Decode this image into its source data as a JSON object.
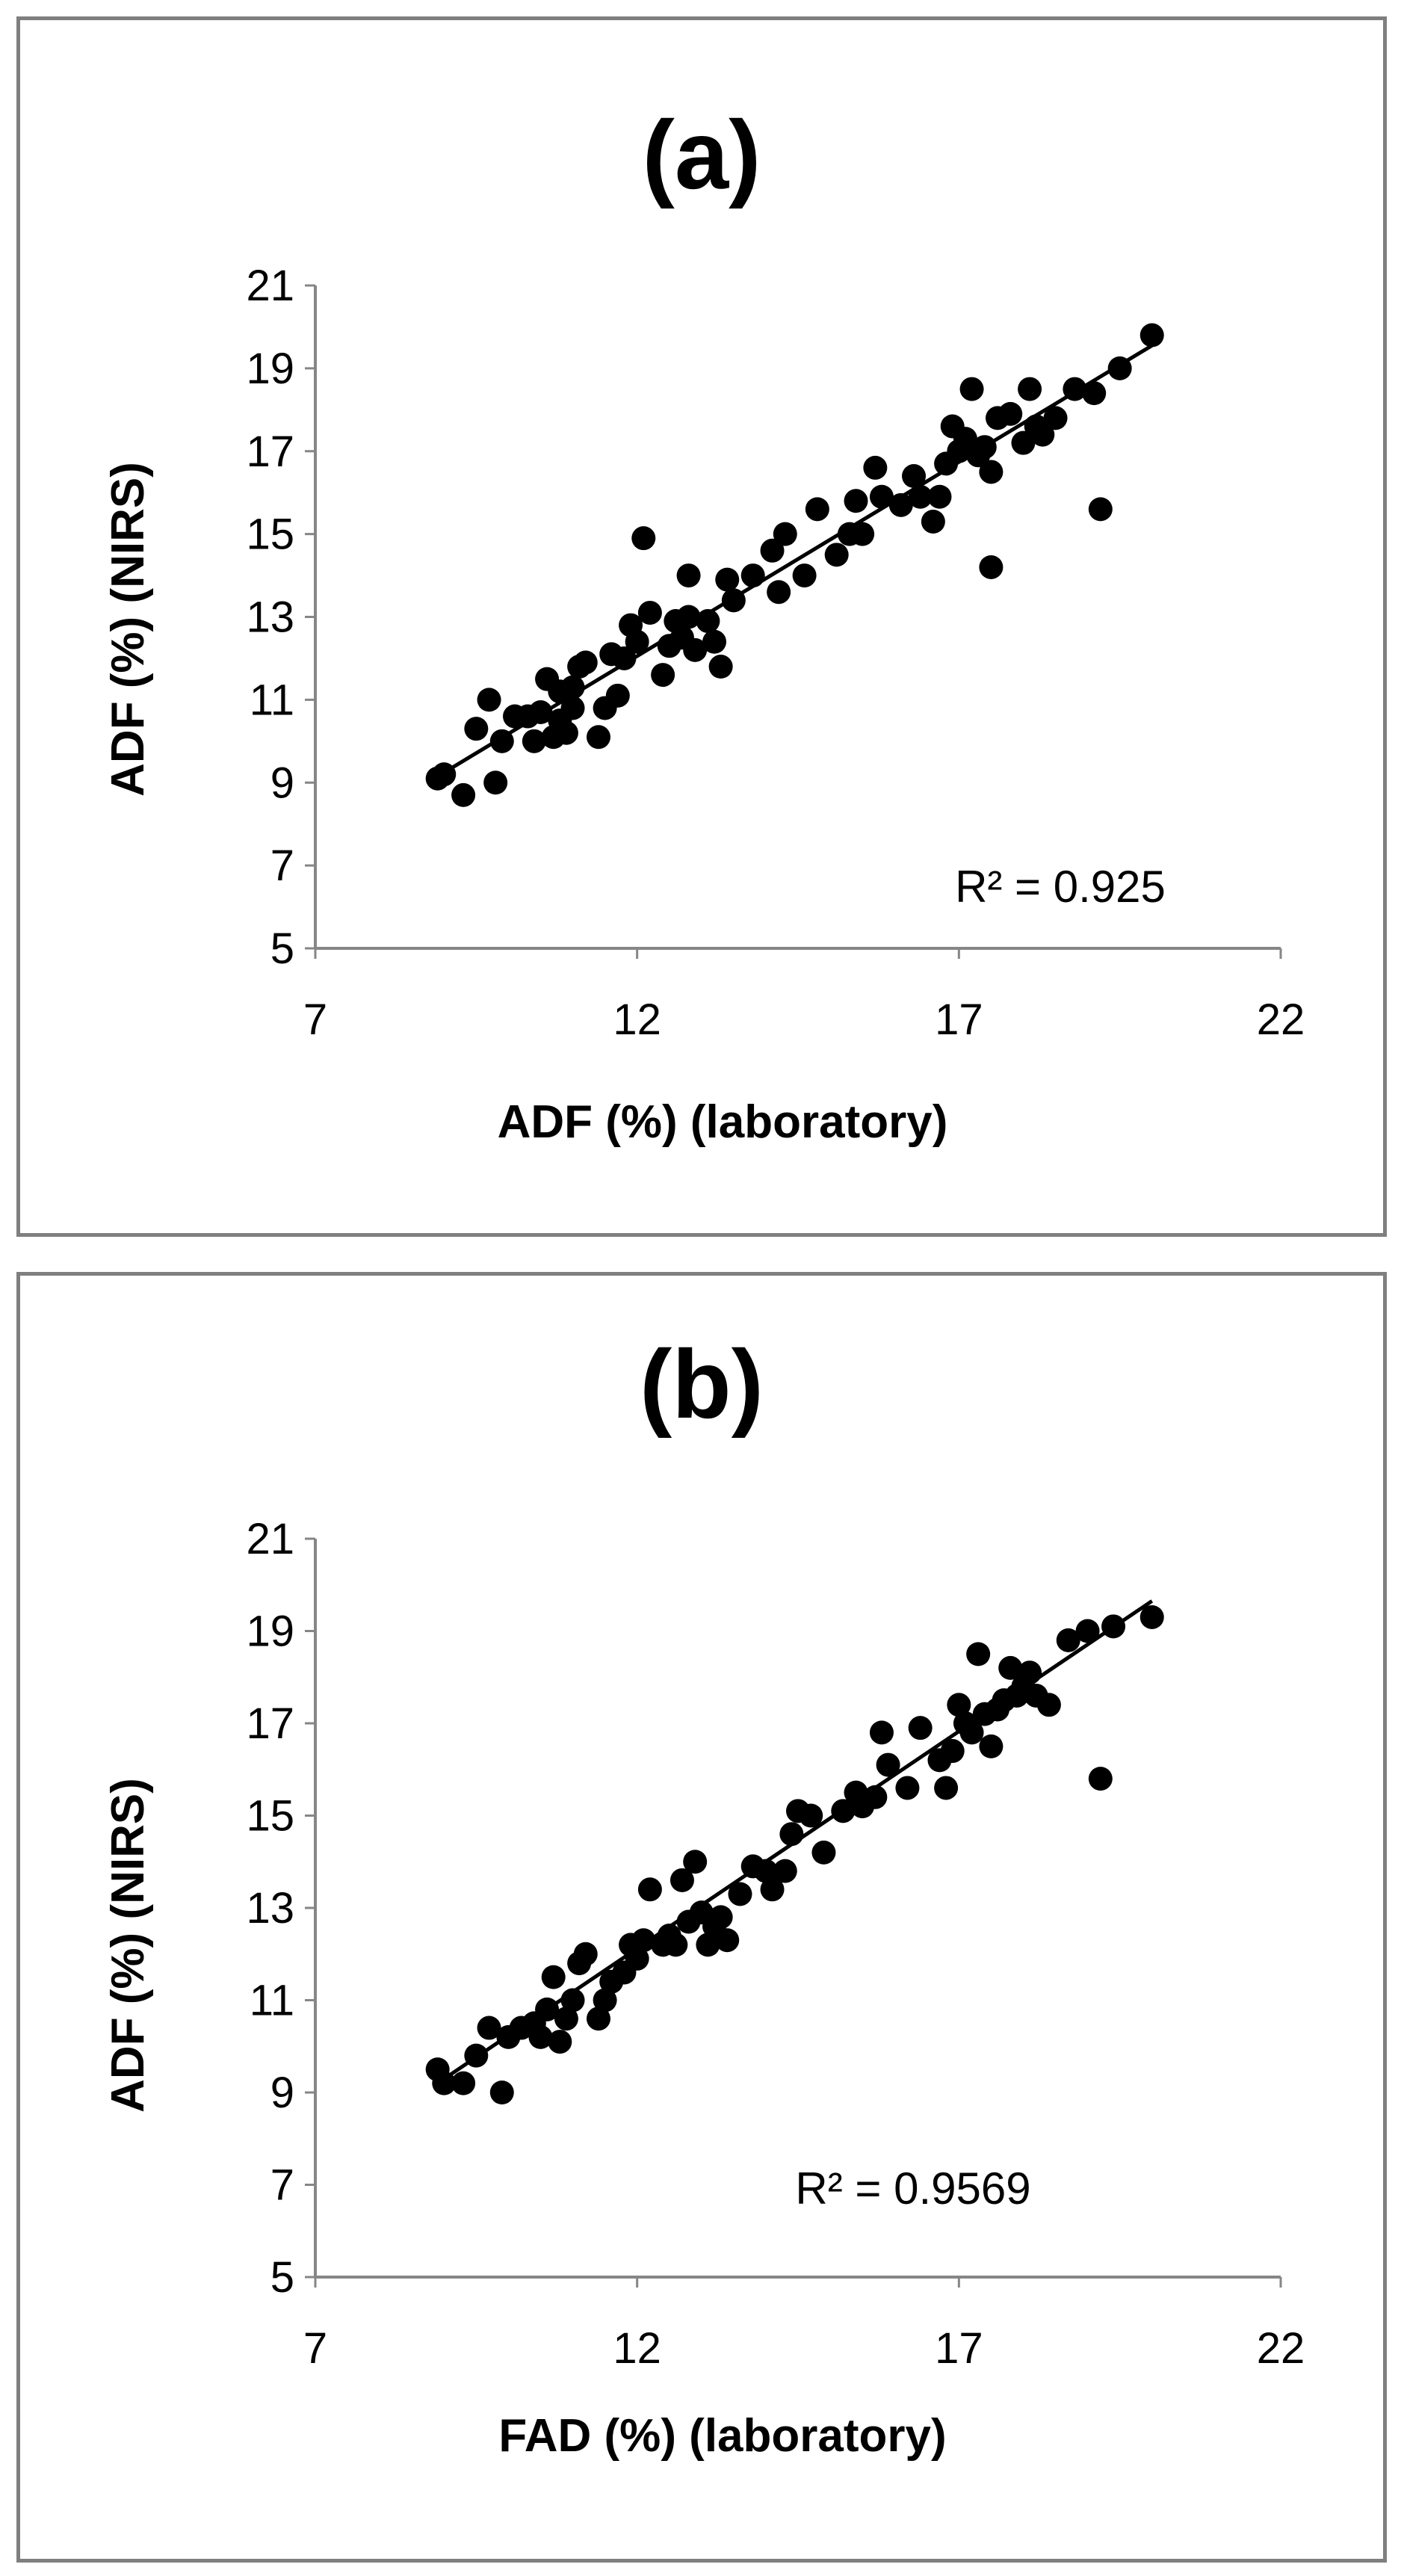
{
  "chart_data": [
    {
      "type": "scatter",
      "title": "(a)",
      "xlabel": "ADF (%) (laboratory)",
      "ylabel": "ADF (%) (NIRS)",
      "xlim": [
        7,
        22
      ],
      "ylim": [
        5,
        21
      ],
      "xticks": [
        "7",
        "12",
        "17",
        "22"
      ],
      "yticks": [
        "5",
        "7",
        "9",
        "11",
        "13",
        "15",
        "17",
        "19",
        "21"
      ],
      "annotation": "R² = 0.925",
      "trendline": {
        "x": [
          8.9,
          20.0
        ],
        "y": [
          9.15,
          19.55
        ]
      },
      "points": [
        [
          8.9,
          9.1
        ],
        [
          9.0,
          9.2
        ],
        [
          9.3,
          8.7
        ],
        [
          9.5,
          10.3
        ],
        [
          9.7,
          11.0
        ],
        [
          9.8,
          9.0
        ],
        [
          9.9,
          10.0
        ],
        [
          10.1,
          10.6
        ],
        [
          10.3,
          10.6
        ],
        [
          10.4,
          10.0
        ],
        [
          10.5,
          10.7
        ],
        [
          10.6,
          11.5
        ],
        [
          10.7,
          10.1
        ],
        [
          10.8,
          10.5
        ],
        [
          10.8,
          11.2
        ],
        [
          10.9,
          10.2
        ],
        [
          11.0,
          10.8
        ],
        [
          11.0,
          11.3
        ],
        [
          11.1,
          11.8
        ],
        [
          11.2,
          11.9
        ],
        [
          11.4,
          10.1
        ],
        [
          11.5,
          10.8
        ],
        [
          11.6,
          12.1
        ],
        [
          11.7,
          11.1
        ],
        [
          11.8,
          12.0
        ],
        [
          11.9,
          12.8
        ],
        [
          12.0,
          12.4
        ],
        [
          12.1,
          14.9
        ],
        [
          12.2,
          13.1
        ],
        [
          12.4,
          11.6
        ],
        [
          12.5,
          12.3
        ],
        [
          12.6,
          12.9
        ],
        [
          12.7,
          12.5
        ],
        [
          12.8,
          13.0
        ],
        [
          12.8,
          14.0
        ],
        [
          12.9,
          12.2
        ],
        [
          13.1,
          12.9
        ],
        [
          13.2,
          12.4
        ],
        [
          13.3,
          11.8
        ],
        [
          13.4,
          13.9
        ],
        [
          13.5,
          13.4
        ],
        [
          13.8,
          14.0
        ],
        [
          14.1,
          14.6
        ],
        [
          14.2,
          13.6
        ],
        [
          14.3,
          15.0
        ],
        [
          14.6,
          14.0
        ],
        [
          14.8,
          15.6
        ],
        [
          15.1,
          14.5
        ],
        [
          15.3,
          15.0
        ],
        [
          15.4,
          15.8
        ],
        [
          15.5,
          15.0
        ],
        [
          15.7,
          16.6
        ],
        [
          15.8,
          15.9
        ],
        [
          16.1,
          15.7
        ],
        [
          16.3,
          16.4
        ],
        [
          16.4,
          15.9
        ],
        [
          16.6,
          15.3
        ],
        [
          16.7,
          15.9
        ],
        [
          16.8,
          16.7
        ],
        [
          16.9,
          17.6
        ],
        [
          17.0,
          17.0
        ],
        [
          17.1,
          17.3
        ],
        [
          17.2,
          18.5
        ],
        [
          17.3,
          16.9
        ],
        [
          17.4,
          17.1
        ],
        [
          17.5,
          16.5
        ],
        [
          17.5,
          14.2
        ],
        [
          17.6,
          17.8
        ],
        [
          17.8,
          17.9
        ],
        [
          18.0,
          17.2
        ],
        [
          18.1,
          18.5
        ],
        [
          18.2,
          17.6
        ],
        [
          18.3,
          17.4
        ],
        [
          18.5,
          17.8
        ],
        [
          18.8,
          18.5
        ],
        [
          19.1,
          18.4
        ],
        [
          19.2,
          15.6
        ],
        [
          19.5,
          19.0
        ],
        [
          20.0,
          19.8
        ]
      ]
    },
    {
      "type": "scatter",
      "title": "(b)",
      "xlabel": "FAD (%) (laboratory)",
      "ylabel": "ADF  (%) (NIRS)",
      "xlim": [
        7,
        22
      ],
      "ylim": [
        5,
        21
      ],
      "xticks": [
        "7",
        "12",
        "17",
        "22"
      ],
      "yticks": [
        "5",
        "7",
        "9",
        "11",
        "13",
        "15",
        "17",
        "19",
        "21"
      ],
      "annotation": "R² = 0.9569",
      "trendline": {
        "x": [
          8.9,
          20.0
        ],
        "y": [
          9.2,
          19.65
        ]
      },
      "points": [
        [
          8.9,
          9.5
        ],
        [
          9.0,
          9.2
        ],
        [
          9.3,
          9.2
        ],
        [
          9.5,
          9.8
        ],
        [
          9.7,
          10.4
        ],
        [
          9.9,
          9.0
        ],
        [
          10.0,
          10.2
        ],
        [
          10.2,
          10.4
        ],
        [
          10.4,
          10.5
        ],
        [
          10.5,
          10.2
        ],
        [
          10.6,
          10.8
        ],
        [
          10.7,
          11.5
        ],
        [
          10.8,
          10.1
        ],
        [
          10.9,
          10.6
        ],
        [
          11.0,
          11.0
        ],
        [
          11.1,
          11.8
        ],
        [
          11.2,
          12.0
        ],
        [
          11.4,
          10.6
        ],
        [
          11.5,
          11.0
        ],
        [
          11.6,
          11.4
        ],
        [
          11.8,
          11.6
        ],
        [
          11.9,
          12.2
        ],
        [
          12.0,
          11.9
        ],
        [
          12.1,
          12.3
        ],
        [
          12.2,
          13.4
        ],
        [
          12.4,
          12.2
        ],
        [
          12.5,
          12.4
        ],
        [
          12.6,
          12.2
        ],
        [
          12.7,
          13.6
        ],
        [
          12.8,
          12.7
        ],
        [
          12.9,
          14.0
        ],
        [
          13.0,
          12.9
        ],
        [
          13.1,
          12.2
        ],
        [
          13.2,
          12.6
        ],
        [
          13.3,
          12.8
        ],
        [
          13.4,
          12.3
        ],
        [
          13.6,
          13.3
        ],
        [
          13.8,
          13.9
        ],
        [
          14.0,
          13.8
        ],
        [
          14.1,
          13.4
        ],
        [
          14.3,
          13.8
        ],
        [
          14.4,
          14.6
        ],
        [
          14.5,
          15.1
        ],
        [
          14.7,
          15.0
        ],
        [
          14.9,
          14.2
        ],
        [
          15.2,
          15.1
        ],
        [
          15.4,
          15.5
        ],
        [
          15.5,
          15.2
        ],
        [
          15.7,
          15.4
        ],
        [
          15.8,
          16.8
        ],
        [
          15.9,
          16.1
        ],
        [
          16.2,
          15.6
        ],
        [
          16.4,
          16.9
        ],
        [
          16.7,
          16.2
        ],
        [
          16.8,
          15.6
        ],
        [
          16.9,
          16.4
        ],
        [
          17.0,
          17.4
        ],
        [
          17.1,
          17.0
        ],
        [
          17.2,
          16.8
        ],
        [
          17.3,
          18.5
        ],
        [
          17.4,
          17.2
        ],
        [
          17.5,
          16.5
        ],
        [
          17.6,
          17.3
        ],
        [
          17.7,
          17.5
        ],
        [
          17.8,
          18.2
        ],
        [
          17.9,
          17.6
        ],
        [
          18.0,
          17.8
        ],
        [
          18.1,
          18.1
        ],
        [
          18.2,
          17.6
        ],
        [
          18.4,
          17.4
        ],
        [
          18.7,
          18.8
        ],
        [
          19.0,
          19.0
        ],
        [
          19.2,
          15.8
        ],
        [
          19.4,
          19.1
        ],
        [
          20.0,
          19.3
        ]
      ]
    }
  ]
}
